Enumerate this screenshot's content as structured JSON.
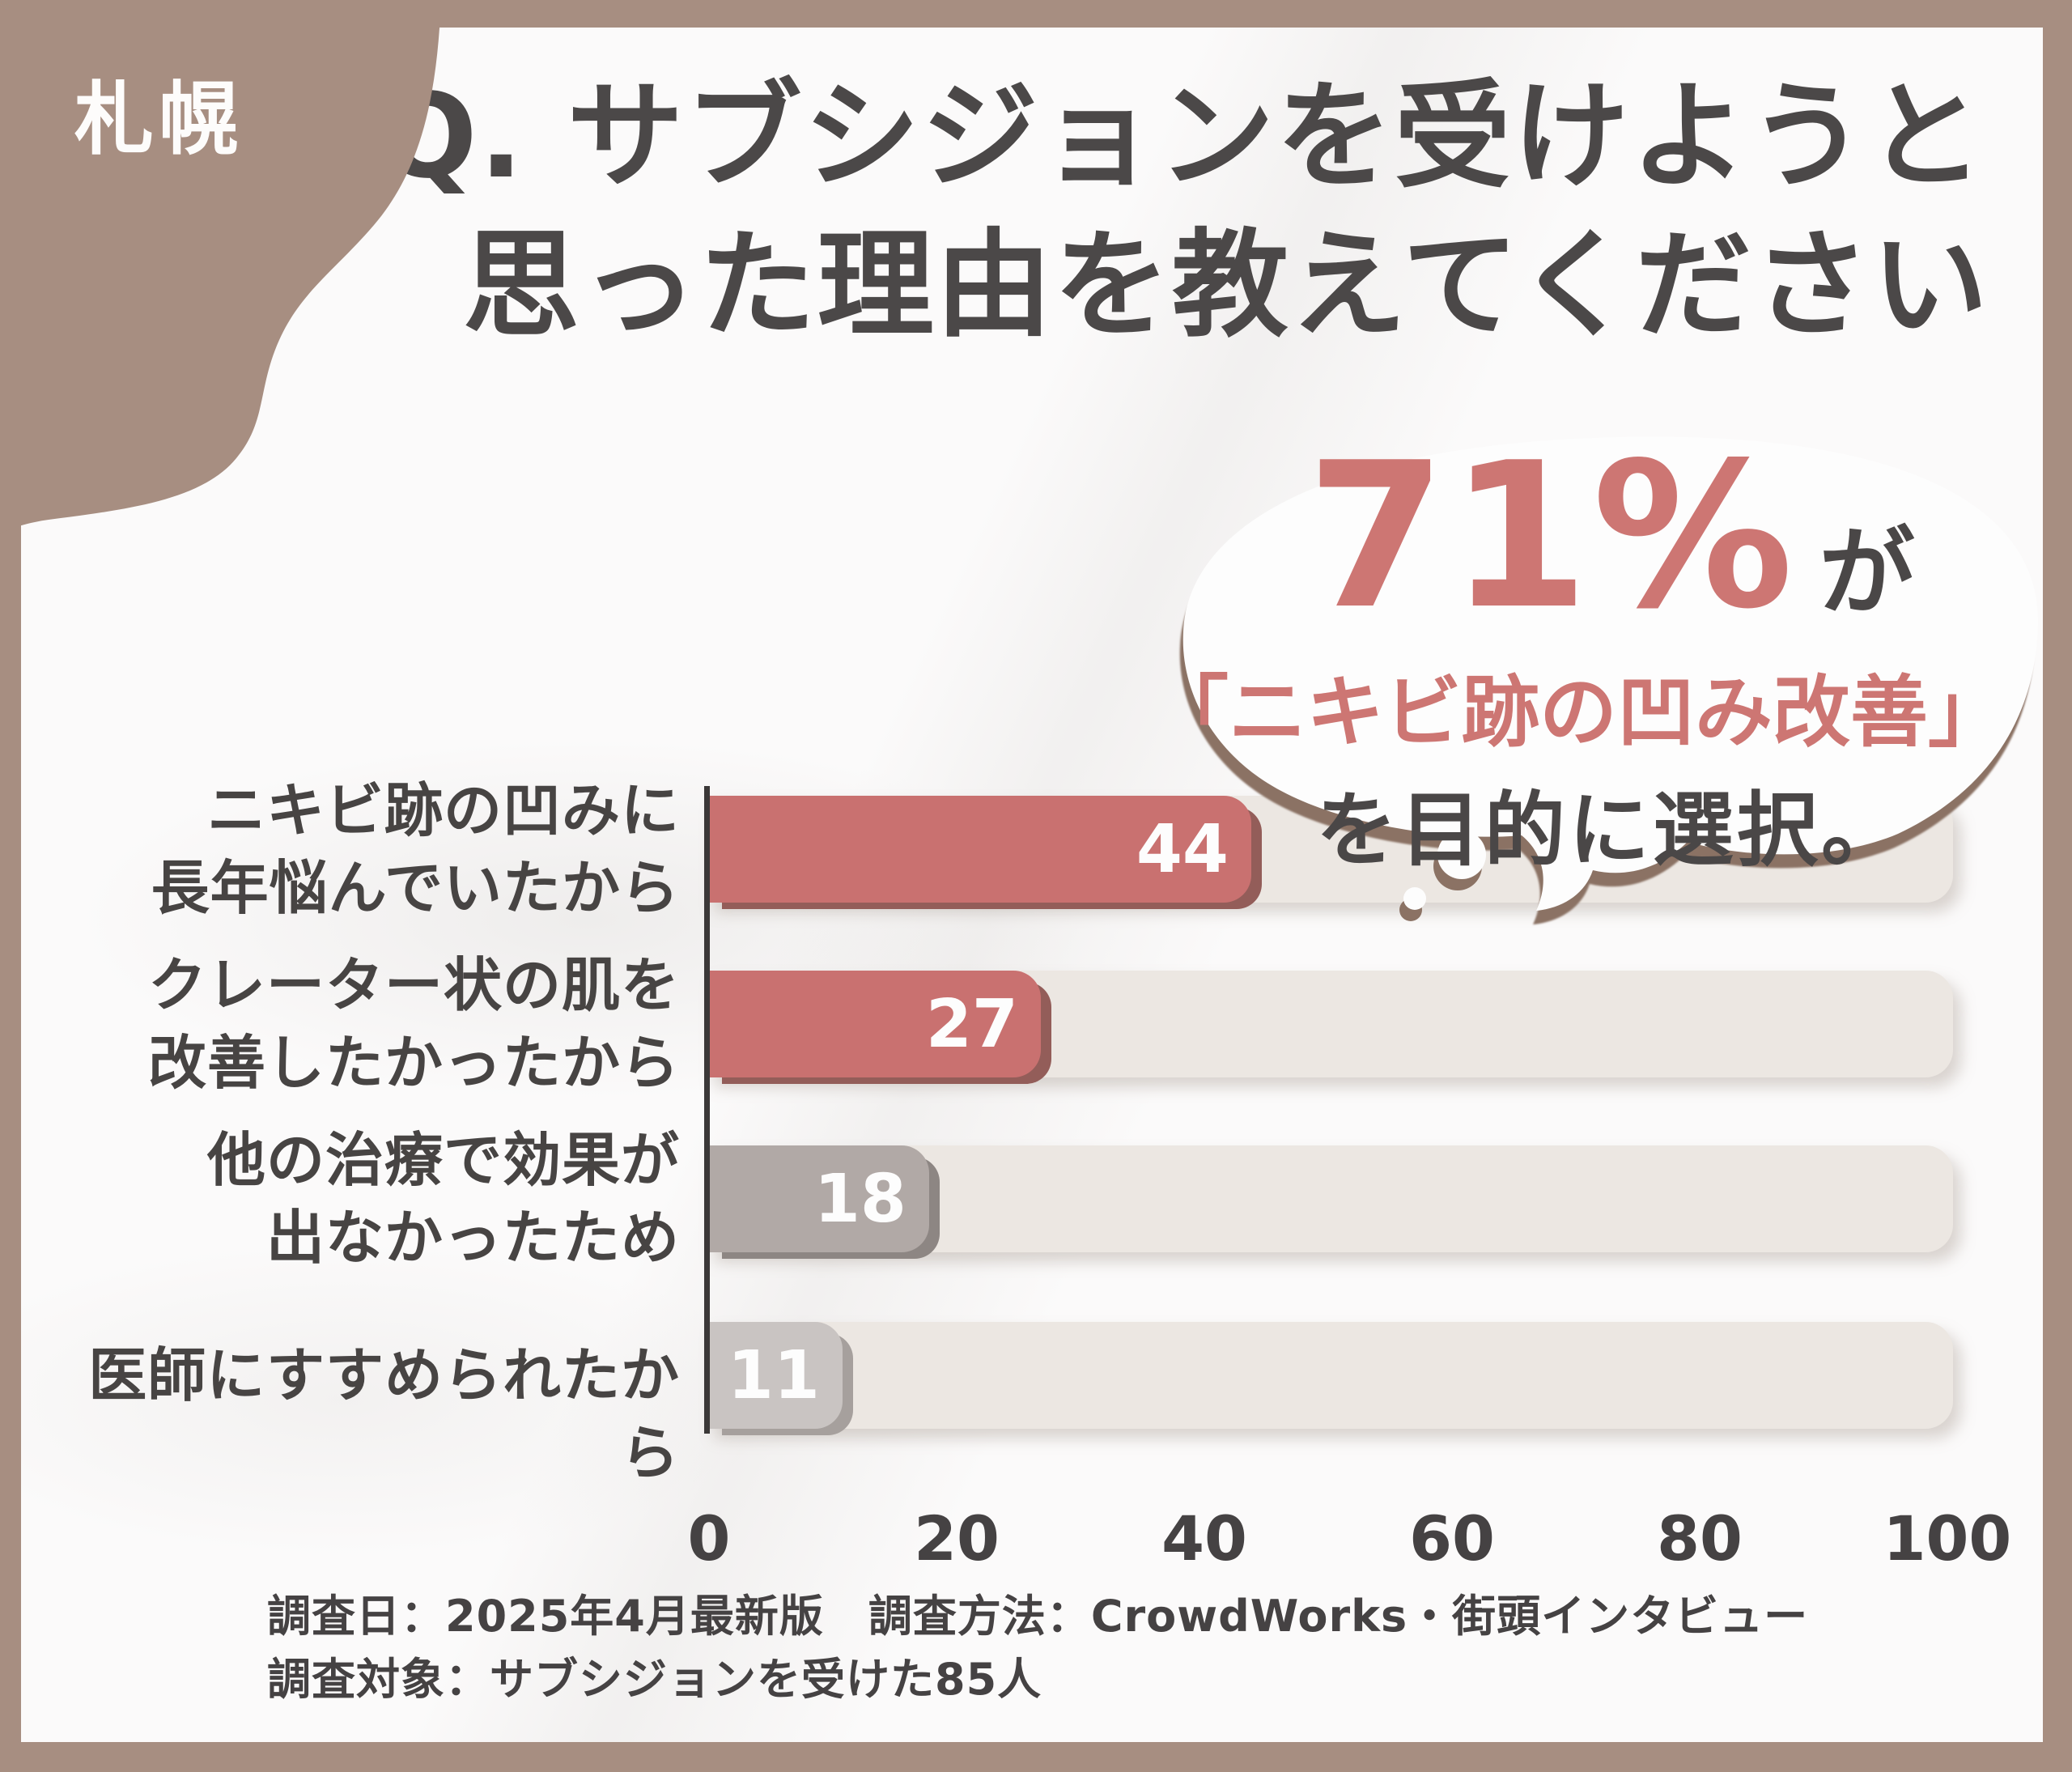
{
  "region_badge": "札幌",
  "title": {
    "line1": "Q. サブシジョンを受けようと",
    "line2": "思った理由を教えてください"
  },
  "bubble": {
    "stat": "71%",
    "stat_suffix": "が",
    "highlight": "「ニキビ跡の凹み改善」",
    "conclusion": "を目的に選択。"
  },
  "chart_data": {
    "type": "bar",
    "orientation": "horizontal",
    "title": "Q. サブシジョンを受けようと思った理由を教えてください",
    "categories": [
      "ニキビ跡の凹みに長年悩んでいたから",
      "クレーター状の肌を改善したかったから",
      "他の治療で効果が出なかったため",
      "医師にすすめられたから"
    ],
    "category_lines": [
      [
        "ニキビ跡の凹みに",
        "長年悩んでいたから"
      ],
      [
        "クレーター状の肌を",
        "改善したかったから"
      ],
      [
        "他の治療で効果が",
        "出なかったため"
      ],
      [
        "医師にすすめられたから"
      ]
    ],
    "values": [
      44,
      27,
      18,
      11
    ],
    "value_labels": [
      "44",
      "27",
      "18",
      "11"
    ],
    "xlim": [
      0,
      100
    ],
    "x_ticks": [
      "0",
      "20",
      "40",
      "60",
      "80",
      "100"
    ],
    "bar_colors": [
      "#c97170",
      "#c97170",
      "#b1a9a6",
      "#c9c4c2"
    ],
    "bar_edge_colors": [
      "#935d59",
      "#935d59",
      "#8d8683",
      "#a6a09d"
    ],
    "track_color": "#ece7e2",
    "grid": false,
    "legend": null
  },
  "footer": {
    "line1": "調査日：2025年4月最新版　調査方法：CrowdWorks・街頭インタビュー",
    "line2": "調査対象：サブシジョンを受けた85人"
  },
  "colors": {
    "frame_brown": "#a78e81",
    "background": "#fbfafa",
    "text_dark": "#4b4848",
    "accent_red": "#cd7673",
    "bubble_shadow": "#8b7264",
    "axis": "#3b3838"
  }
}
